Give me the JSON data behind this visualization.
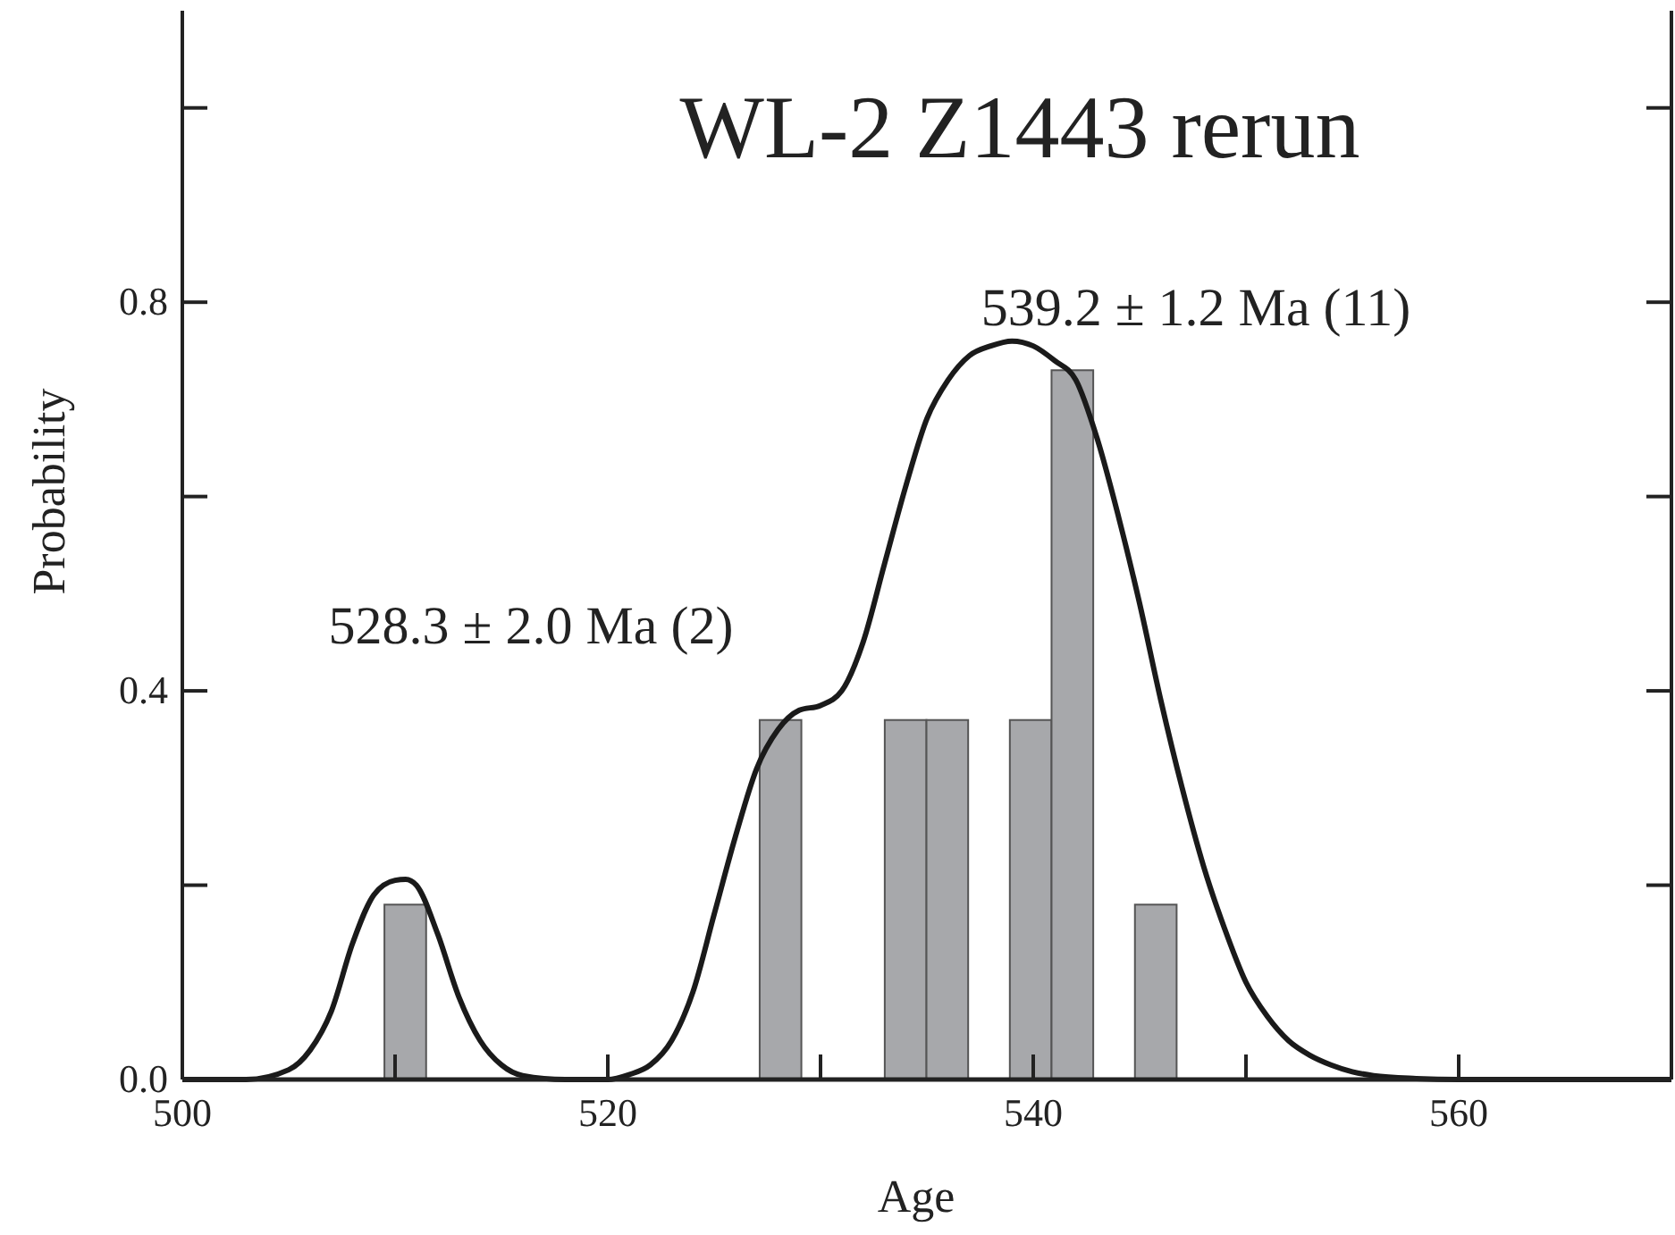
{
  "chart_data": {
    "type": "histogram",
    "title": "WL-2 Z1443 rerun",
    "xlabel": "Age",
    "ylabel": "Probability",
    "bins": [
      509.5,
      511.46,
      513.42,
      515.38,
      517.34,
      519.3,
      521.26,
      523.22,
      525.18,
      527.14,
      529.1,
      531.06,
      533.02,
      534.98,
      536.94,
      538.9,
      540.86,
      542.82,
      544.78,
      546.74
    ],
    "series": [
      {
        "color": "#a7a8ab",
        "values": [
          0.18,
          0,
          0,
          0,
          0,
          0,
          0,
          0,
          0,
          0.37,
          0,
          0,
          0.37,
          0.37,
          0,
          0.37,
          0.73,
          0,
          0.18
        ]
      },
      {
        "type": "line",
        "color": "#1a1a1a",
        "x": [
          500,
          503,
          505,
          506,
          507,
          508,
          509,
          510,
          510.5,
          511,
          512,
          513,
          514,
          515,
          516,
          518,
          520,
          521,
          522,
          523,
          524,
          525,
          526,
          527,
          528,
          529,
          530,
          531,
          532,
          533,
          534,
          535,
          536,
          537,
          538,
          539,
          540,
          541,
          542,
          543,
          544,
          545,
          546,
          547,
          548,
          549,
          550,
          551,
          552,
          553,
          554,
          555,
          556,
          558,
          560,
          565,
          570
        ],
        "values": [
          0,
          0,
          0.01,
          0.03,
          0.07,
          0.14,
          0.19,
          0.205,
          0.206,
          0.2,
          0.15,
          0.085,
          0.04,
          0.015,
          0.004,
          0,
          0,
          0.005,
          0.015,
          0.04,
          0.09,
          0.17,
          0.25,
          0.32,
          0.36,
          0.38,
          0.385,
          0.4,
          0.45,
          0.53,
          0.61,
          0.68,
          0.72,
          0.745,
          0.755,
          0.76,
          0.755,
          0.74,
          0.72,
          0.66,
          0.58,
          0.49,
          0.39,
          0.3,
          0.22,
          0.155,
          0.1,
          0.065,
          0.04,
          0.025,
          0.015,
          0.008,
          0.004,
          0.001,
          0,
          0,
          0
        ]
      }
    ],
    "annotations": [
      "528.3 ± 2.0 Ma (2)",
      "539.2 ± 1.2 Ma (11)"
    ],
    "xlim": [
      500,
      570
    ],
    "xticks": [
      500,
      {
        "value": 510,
        "label": null
      },
      520,
      {
        "value": 530,
        "label": null
      },
      540,
      {
        "value": 550,
        "label": null
      },
      560
    ],
    "ylim": [
      0,
      1.1
    ],
    "yticks": [
      {
        "value": 0,
        "label": "0.0"
      },
      {
        "value": 0.2,
        "label": null
      },
      0.4,
      {
        "value": 0.6,
        "label": null
      },
      0.8,
      {
        "value": 1.0,
        "label": null
      }
    ],
    "grid": false,
    "line_style": "solid",
    "marker": "none"
  }
}
